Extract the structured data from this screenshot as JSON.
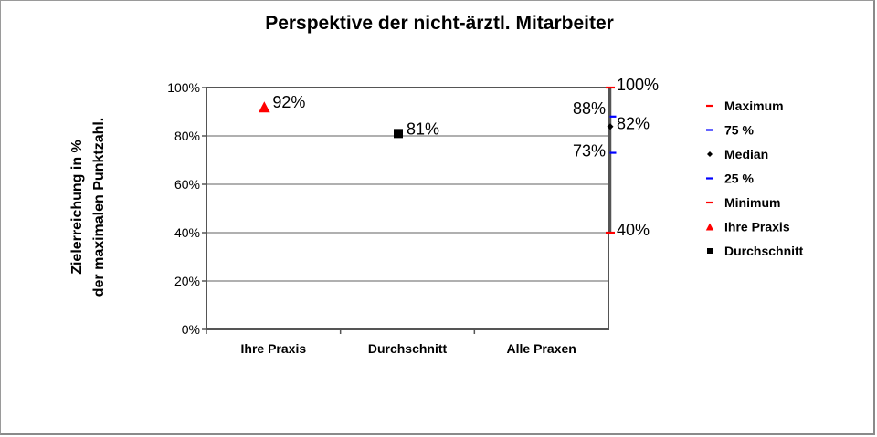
{
  "chart_data": {
    "type": "scatter",
    "title": "Perspektive der nicht-ärztl. Mitarbeiter",
    "ylabel_line1": "Zielerreichung in %",
    "ylabel_line2": "der maximalen Punktzahl.",
    "xlabel": "",
    "ylim": [
      0,
      100
    ],
    "y_ticks": [
      {
        "value": 0,
        "label": "0%"
      },
      {
        "value": 20,
        "label": "20%"
      },
      {
        "value": 40,
        "label": "40%"
      },
      {
        "value": 60,
        "label": "60%"
      },
      {
        "value": 80,
        "label": "80%"
      },
      {
        "value": 100,
        "label": "100%"
      }
    ],
    "grid": true,
    "categories": [
      "Ihre Praxis",
      "Durchschnitt",
      "Alle Praxen"
    ],
    "series": [
      {
        "name": "Ihre Praxis",
        "category": 0,
        "value": 92,
        "label": "92%",
        "marker": "triangle",
        "color": "#ff0000"
      },
      {
        "name": "Durchschnitt",
        "category": 1,
        "value": 81,
        "label": "81%",
        "marker": "square",
        "color": "#000000"
      }
    ],
    "range": {
      "category": 2,
      "maximum": {
        "value": 100,
        "label": "100%"
      },
      "q75": {
        "value": 88,
        "label": "88%"
      },
      "median": {
        "value": 82,
        "label": "82%"
      },
      "q25": {
        "value": 73,
        "label": "73%"
      },
      "minimum": {
        "value": 40,
        "label": "40%"
      }
    },
    "legend": {
      "position": "right",
      "items": [
        {
          "label": "Maximum",
          "marker": "dash",
          "color": "#ff0000"
        },
        {
          "label": "75 %",
          "marker": "dash",
          "color": "#0000ff"
        },
        {
          "label": "Median",
          "marker": "diamond",
          "color": "#000000"
        },
        {
          "label": "25 %",
          "marker": "dash",
          "color": "#0000ff"
        },
        {
          "label": "Minimum",
          "marker": "dash",
          "color": "#ff0000"
        },
        {
          "label": "Ihre Praxis",
          "marker": "triangle",
          "color": "#ff0000"
        },
        {
          "label": "Durchschnitt",
          "marker": "square",
          "color": "#000000"
        }
      ]
    },
    "colors": {
      "grid": "#b0b0b0",
      "axis": "#555555",
      "range_line": "#555555"
    }
  }
}
